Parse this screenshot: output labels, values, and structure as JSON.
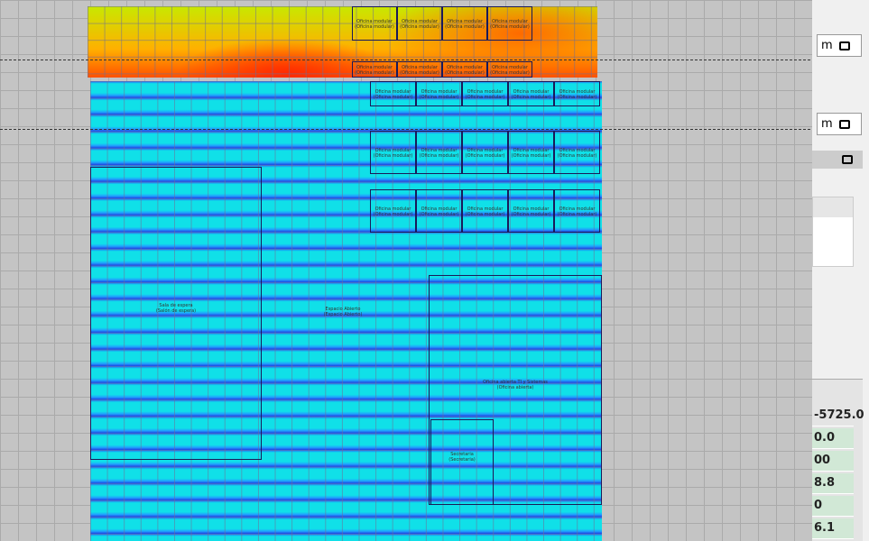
{
  "rooms": [
    {
      "name": "Sala de espera",
      "sub": "(Salón de espera)"
    },
    {
      "name": "Espacio Abierto",
      "sub": "(Espacio Abierto)"
    },
    {
      "name": "Oficina abierta TI y Sistemas",
      "sub": "(Oficina abierta)"
    },
    {
      "name": "Secretaria",
      "sub": "(Secretaria)"
    }
  ],
  "modular": {
    "name": "Oficina modular",
    "sub": "(Oficina modular)"
  },
  "panel": {
    "unit_1": "m",
    "unit_2": "m",
    "values": [
      "-5725.0",
      "0.0",
      "00",
      "8.8",
      "0",
      "6.1"
    ]
  }
}
